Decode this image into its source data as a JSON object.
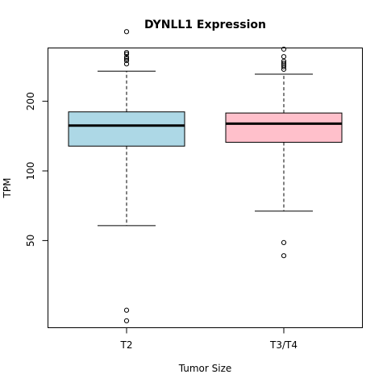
{
  "chart_data": {
    "type": "boxplot",
    "title": "DYNLL1 Expression",
    "xlabel": "Tumor Size",
    "ylabel": "TPM",
    "y_scale": "log",
    "ylim": [
      21,
      340
    ],
    "y_ticks": [
      50,
      100,
      200
    ],
    "grid": false,
    "legend": "none",
    "categories": [
      "T2",
      "T3/T4"
    ],
    "series": [
      {
        "category": "T2",
        "color": "#add8e6",
        "whisker_low": 58,
        "q1": 128,
        "median": 157,
        "q3": 180,
        "whisker_high": 270,
        "outliers": [
          25,
          22.5,
          290,
          300,
          305,
          310,
          320,
          325,
          400
        ]
      },
      {
        "category": "T3/T4",
        "color": "#ffc0cb",
        "whisker_low": 67,
        "q1": 133,
        "median": 160,
        "q3": 178,
        "whisker_high": 262,
        "outliers": [
          49,
          43,
          275,
          282,
          287,
          292,
          298,
          312,
          336
        ]
      }
    ]
  }
}
